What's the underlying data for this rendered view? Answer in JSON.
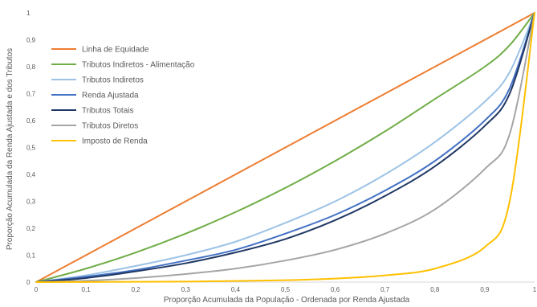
{
  "chart_data": {
    "type": "line",
    "title": "",
    "xlabel": "Proporção Acumulada da População - Ordenada por Renda Ajustada",
    "ylabel": "Proporção Acumulada da Renda Ajustada e dos Tributos",
    "xlim": [
      0,
      1
    ],
    "ylim": [
      0,
      1
    ],
    "x_ticks": [
      "0",
      "0,1",
      "0,2",
      "0,3",
      "0,4",
      "0,5",
      "0,6",
      "0,7",
      "0,8",
      "0,9",
      "1"
    ],
    "y_ticks": [
      "0",
      "0,1",
      "0,2",
      "0,3",
      "0,4",
      "0,5",
      "0,6",
      "0,7",
      "0,8",
      "0,9",
      "1"
    ],
    "grid": "none",
    "legend": "top-left",
    "x": [
      0,
      0.1,
      0.2,
      0.3,
      0.4,
      0.5,
      0.6,
      0.7,
      0.8,
      0.9,
      0.95,
      1
    ],
    "series": [
      {
        "name": "Linha de Equidade",
        "color": "#ED7D31",
        "values": [
          0,
          0.1,
          0.2,
          0.3,
          0.4,
          0.5,
          0.6,
          0.7,
          0.8,
          0.9,
          0.95,
          1
        ]
      },
      {
        "name": "Tributos Indiretos - Alimentação",
        "color": "#70AD47",
        "values": [
          0,
          0.05,
          0.11,
          0.18,
          0.26,
          0.35,
          0.45,
          0.56,
          0.68,
          0.8,
          0.88,
          1
        ]
      },
      {
        "name": "Tributos Indiretos",
        "color": "#9DC3E6",
        "values": [
          0,
          0.025,
          0.06,
          0.1,
          0.15,
          0.22,
          0.3,
          0.4,
          0.52,
          0.67,
          0.78,
          1
        ]
      },
      {
        "name": "Renda Ajustada",
        "color": "#4472C4",
        "values": [
          0,
          0.02,
          0.045,
          0.08,
          0.12,
          0.18,
          0.25,
          0.34,
          0.45,
          0.6,
          0.72,
          1
        ]
      },
      {
        "name": "Tributos Totais",
        "color": "#203864",
        "values": [
          0,
          0.015,
          0.04,
          0.07,
          0.11,
          0.16,
          0.23,
          0.32,
          0.43,
          0.58,
          0.7,
          1
        ]
      },
      {
        "name": "Tributos Diretos",
        "color": "#A5A5A5",
        "values": [
          0,
          0.005,
          0.015,
          0.03,
          0.05,
          0.08,
          0.12,
          0.18,
          0.27,
          0.42,
          0.55,
          1
        ]
      },
      {
        "name": "Imposto de Renda",
        "color": "#FFC000",
        "values": [
          0,
          0.0005,
          0.001,
          0.002,
          0.004,
          0.007,
          0.013,
          0.025,
          0.05,
          0.13,
          0.3,
          1
        ]
      }
    ]
  }
}
